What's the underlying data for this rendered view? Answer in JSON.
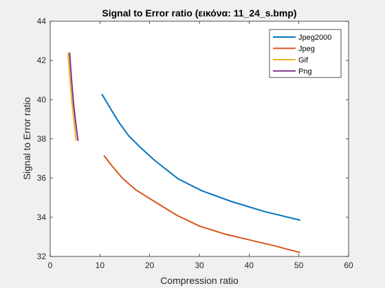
{
  "chart_data": {
    "type": "line",
    "title": "Signal to Error ratio (εικόνα: 11_24_s.bmp)",
    "xlabel": "Compression ratio",
    "ylabel": "Signal to Error ratio",
    "xlim": [
      0,
      60
    ],
    "ylim": [
      32,
      44
    ],
    "xticks": [
      0,
      10,
      20,
      30,
      40,
      50,
      60
    ],
    "yticks": [
      32,
      34,
      36,
      38,
      40,
      42,
      44
    ],
    "grid": false,
    "legend_position": "top-right",
    "series": [
      {
        "name": "Jpeg2000",
        "color": "#0072bd",
        "x": [
          10.4,
          12.0,
          13.8,
          15.8,
          18.2,
          21.0,
          25.8,
          30.5,
          36.5,
          43.0,
          50.3
        ],
        "y": [
          40.28,
          39.6,
          38.85,
          38.15,
          37.55,
          36.9,
          35.95,
          35.35,
          34.8,
          34.3,
          33.85
        ]
      },
      {
        "name": "Jpeg",
        "color": "#d95319",
        "x": [
          10.8,
          12.5,
          14.5,
          17.2,
          21.0,
          25.5,
          30.0,
          35.0,
          40.0,
          45.0,
          50.3
        ],
        "y": [
          37.15,
          36.6,
          36.0,
          35.4,
          34.8,
          34.1,
          33.55,
          33.15,
          32.85,
          32.55,
          32.2
        ]
      },
      {
        "name": "Gif",
        "color": "#edb120",
        "x": [
          3.6,
          4.0,
          4.4,
          4.8,
          5.2
        ],
        "y": [
          42.4,
          41.0,
          39.8,
          38.9,
          37.9
        ]
      },
      {
        "name": "Png",
        "color": "#7e2f8e",
        "x": [
          3.9,
          4.3,
          4.7,
          5.1,
          5.6
        ],
        "y": [
          42.4,
          41.0,
          39.8,
          38.9,
          37.9
        ]
      }
    ]
  }
}
